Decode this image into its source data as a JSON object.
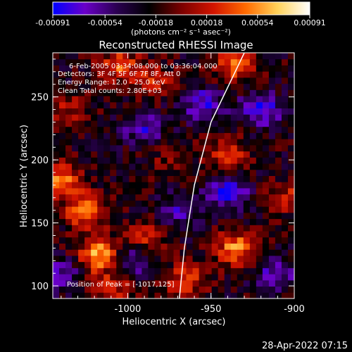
{
  "title": "Reconstructed RHESSI Image",
  "timestamp": "28-Apr-2022 07:15",
  "colorbar": {
    "ticks": [
      "-0.00091",
      "-0.00054",
      "-0.00018",
      "0.00018",
      "0.00054",
      "0.00091"
    ],
    "unit_label": "(photons cm⁻² s⁻¹ asec⁻²)",
    "range": [
      -0.00091,
      0.00091
    ],
    "colors": [
      "#0000ff",
      "#6a00c8",
      "#2a0050",
      "#000000",
      "#7a0000",
      "#d21400",
      "#ff6a00",
      "#ffd25a",
      "#ffffff"
    ]
  },
  "annotations": {
    "time": "6-Feb-2005 03:34:08.000 to 03:36:04.000",
    "detectors": "Detectors: 3F 4F 5F 6F 7F 8F, Att 0",
    "energy": "Energy Range: 12.0 - 25.0 keV",
    "clean": "Clean    Total counts: 2.80E+03",
    "peak": "Position of Peak = [-1017,125]"
  },
  "chart_data": {
    "type": "heatmap",
    "title": "Reconstructed RHESSI Image",
    "xlabel": "Heliocentric X (arcsec)",
    "ylabel": "Heliocentric Y (arcsec)",
    "xlim": [
      -1045,
      -900
    ],
    "ylim": [
      90,
      285
    ],
    "xticks": [
      "-1000",
      "-950",
      "-900"
    ],
    "yticks": [
      "100",
      "150",
      "200",
      "250"
    ],
    "xtick_values": [
      -1000,
      -950,
      -900
    ],
    "ytick_values": [
      100,
      150,
      200,
      250
    ],
    "peak": [
      -1017,
      125
    ],
    "hotspots": [
      {
        "x": -1017,
        "y": 125,
        "v": 1.0
      },
      {
        "x": -1025,
        "y": 160,
        "v": 0.8
      },
      {
        "x": -1040,
        "y": 185,
        "v": 0.75
      },
      {
        "x": -1005,
        "y": 275,
        "v": 0.6
      },
      {
        "x": -985,
        "y": 262,
        "v": 0.5
      },
      {
        "x": -935,
        "y": 275,
        "v": 0.7
      },
      {
        "x": -940,
        "y": 205,
        "v": 0.55
      },
      {
        "x": -935,
        "y": 130,
        "v": 0.8
      },
      {
        "x": -965,
        "y": 105,
        "v": 0.6
      },
      {
        "x": -1010,
        "y": 100,
        "v": 0.55
      },
      {
        "x": -990,
        "y": 140,
        "v": 0.45
      },
      {
        "x": -905,
        "y": 170,
        "v": 0.45
      },
      {
        "x": -1035,
        "y": 240,
        "v": 0.35
      },
      {
        "x": -975,
        "y": 200,
        "v": 0.25
      }
    ],
    "cold_regions": [
      {
        "x": -940,
        "y": 175,
        "v": -0.7
      },
      {
        "x": -955,
        "y": 245,
        "v": -0.6
      },
      {
        "x": -920,
        "y": 240,
        "v": -0.65
      },
      {
        "x": -990,
        "y": 225,
        "v": -0.5
      },
      {
        "x": -1000,
        "y": 120,
        "v": -0.55
      },
      {
        "x": -910,
        "y": 110,
        "v": -0.5
      },
      {
        "x": -1040,
        "y": 110,
        "v": -0.45
      },
      {
        "x": -970,
        "y": 160,
        "v": -0.4
      }
    ],
    "limb_arc": [
      [
        -930,
        285
      ],
      [
        -950,
        230
      ],
      [
        -960,
        180
      ],
      [
        -966,
        130
      ],
      [
        -969,
        90
      ]
    ]
  }
}
